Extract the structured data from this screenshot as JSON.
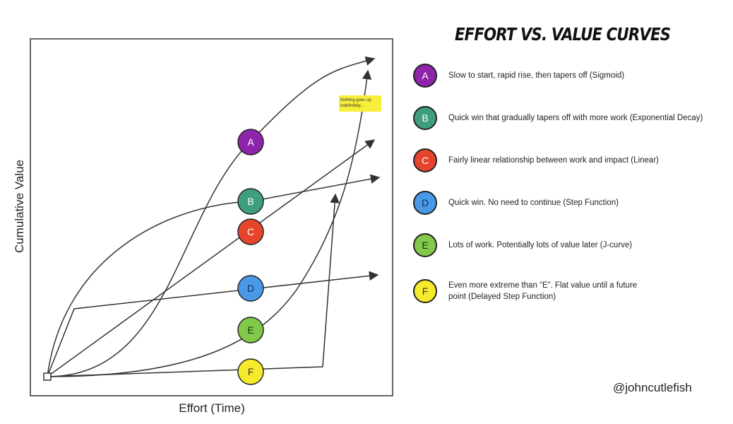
{
  "title": "EFFORT VS. VALUE CURVES",
  "axes": {
    "x_label": "Effort (Time)",
    "y_label": "Cumulative Value"
  },
  "sticky_note": "Nothing goes up indefinitely...",
  "handle": "@johncutlefish",
  "curves": [
    {
      "id": "A",
      "color": "#8e24aa",
      "text_color": "#ffffff",
      "description": "Slow to start, rapid rise, then tapers off (Sigmoid)"
    },
    {
      "id": "B",
      "color": "#3f9e80",
      "text_color": "#ffffff",
      "description": "Quick win that gradually tapers off with more work (Exponential Decay)"
    },
    {
      "id": "C",
      "color": "#e4452b",
      "text_color": "#ffffff",
      "description": "Fairly linear relationship between work and impact (Linear)"
    },
    {
      "id": "D",
      "color": "#4a98e8",
      "text_color": "#12315a",
      "description": "Quick win. No need to continue (Step Function)"
    },
    {
      "id": "E",
      "color": "#82c84a",
      "text_color": "#1d3a0c",
      "description": "Lots of work. Potentially lots of value later (J-curve)"
    },
    {
      "id": "F",
      "color": "#f6ea2c",
      "text_color": "#333333",
      "description": "Even more extreme than “E”. Flat value until a future point (Delayed Step Function)"
    }
  ]
}
